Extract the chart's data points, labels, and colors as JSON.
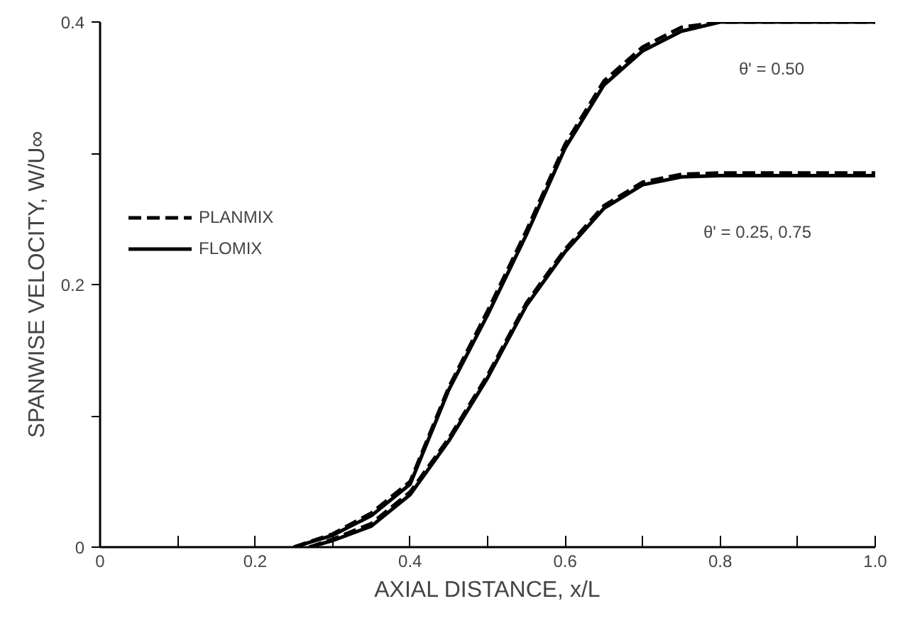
{
  "chart_data": {
    "type": "line",
    "xlabel": "AXIAL DISTANCE, x/L",
    "ylabel": "SPANWISE VELOCITY, W/U∞",
    "xlim": [
      0,
      1
    ],
    "ylim": [
      0,
      0.4
    ],
    "xticks": [
      0,
      {
        "value": 0.1,
        "label": null
      },
      0.2,
      {
        "value": 0.3,
        "label": null
      },
      0.4,
      {
        "value": 0.5,
        "label": null
      },
      0.6,
      {
        "value": 0.7,
        "label": null
      },
      0.8,
      {
        "value": 0.9,
        "label": null
      },
      {
        "value": 1,
        "label": "1.0"
      }
    ],
    "yticks": [
      0,
      {
        "value": 0.1,
        "label": null
      },
      0.2,
      {
        "value": 0.3,
        "label": null
      },
      0.4
    ],
    "grid": false,
    "legend": "top left",
    "marker": "none",
    "series": [
      {
        "name": "PLANMIX",
        "color": "#000000",
        "line_style": "dashed",
        "x": [
          0.25,
          0.3,
          0.35,
          0.4,
          0.45,
          0.5,
          0.55,
          0.6,
          0.65,
          0.7,
          0.75,
          0.8,
          0.9,
          1.0
        ],
        "values": [
          0,
          0.01,
          0.026,
          0.05,
          0.122,
          0.18,
          0.241,
          0.307,
          0.355,
          0.381,
          0.396,
          0.4,
          0.4,
          0.4
        ]
      },
      {
        "name": "FLOMIX",
        "color": "#000000",
        "line_style": "solid",
        "x": [
          0.25,
          0.3,
          0.35,
          0.4,
          0.45,
          0.5,
          0.55,
          0.6,
          0.65,
          0.7,
          0.75,
          0.8,
          0.9,
          1.0
        ],
        "values": [
          0,
          0.009,
          0.024,
          0.048,
          0.12,
          0.177,
          0.238,
          0.304,
          0.352,
          0.378,
          0.393,
          0.4,
          0.4,
          0.4
        ]
      },
      {
        "color": "#000000",
        "line_style": "dashed",
        "x": [
          0.27,
          0.3,
          0.35,
          0.4,
          0.45,
          0.5,
          0.55,
          0.6,
          0.65,
          0.7,
          0.75,
          0.8,
          0.9,
          1.0
        ],
        "values": [
          0,
          0.006,
          0.018,
          0.042,
          0.083,
          0.131,
          0.186,
          0.227,
          0.26,
          0.278,
          0.284,
          0.285,
          0.285,
          0.285
        ]
      },
      {
        "color": "#000000",
        "line_style": "solid",
        "x": [
          0.27,
          0.3,
          0.35,
          0.4,
          0.45,
          0.5,
          0.55,
          0.6,
          0.65,
          0.7,
          0.75,
          0.8,
          0.9,
          1.0
        ],
        "values": [
          0,
          0.005,
          0.016,
          0.04,
          0.081,
          0.129,
          0.184,
          0.225,
          0.258,
          0.276,
          0.282,
          0.283,
          0.283,
          0.283
        ]
      }
    ],
    "annotations": [
      "θ' = 0.50",
      "θ' = 0.25, 0.75"
    ]
  }
}
